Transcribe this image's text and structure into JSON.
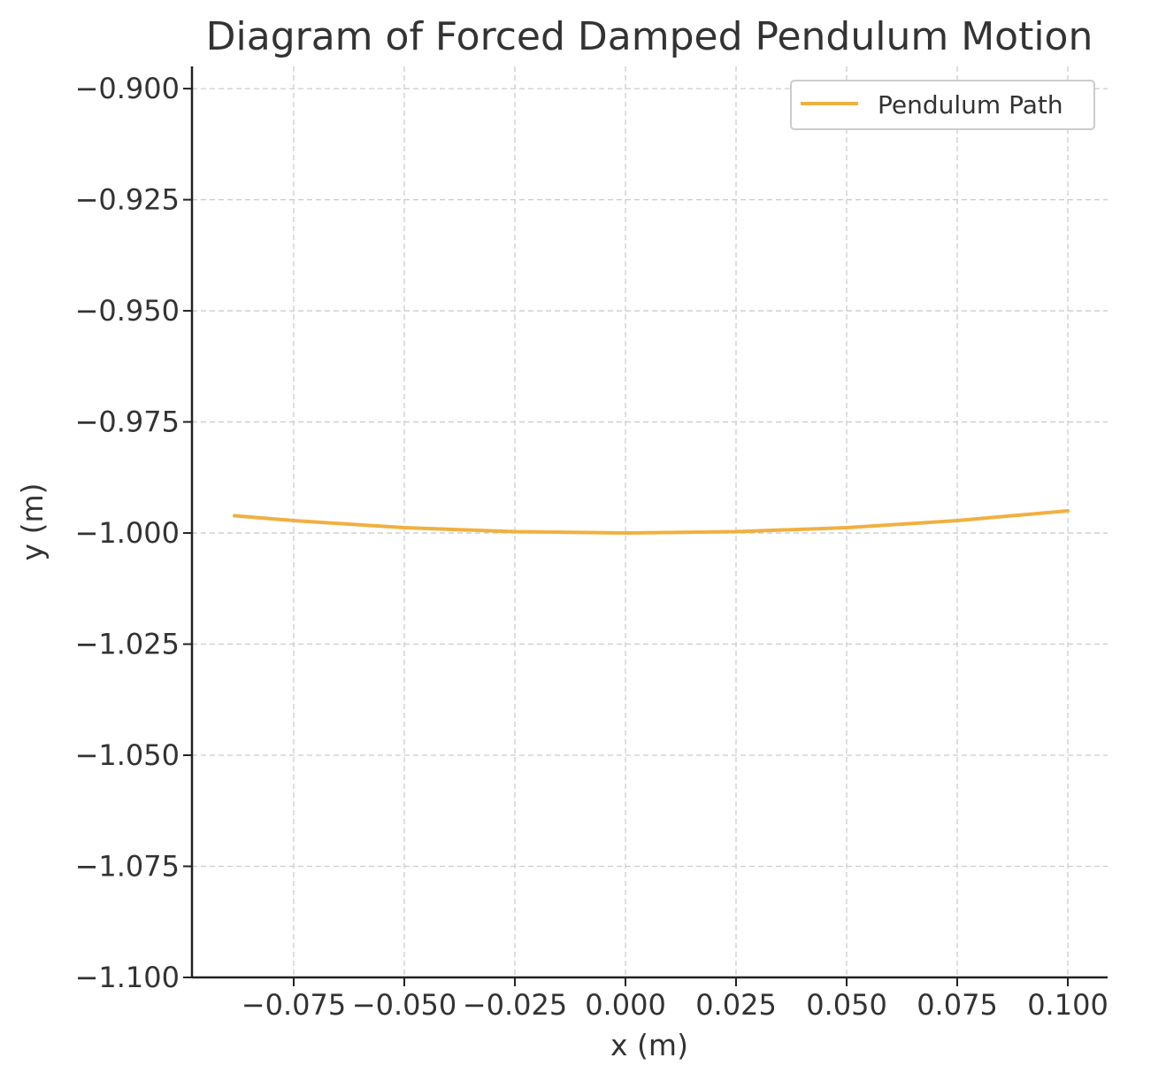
{
  "chart_data": {
    "type": "line",
    "title": "Diagram of Forced Damped Pendulum Motion",
    "xlabel": "x (m)",
    "ylabel": "y (m)",
    "xlim": [
      -0.098,
      0.109
    ],
    "ylim": [
      -1.1,
      -0.895
    ],
    "xticks": [
      -0.075,
      -0.05,
      -0.025,
      0.0,
      0.025,
      0.05,
      0.075,
      0.1
    ],
    "xtick_labels": [
      "−0.075",
      "−0.050",
      "−0.025",
      "0.000",
      "0.025",
      "0.050",
      "0.075",
      "0.100"
    ],
    "yticks": [
      -0.9,
      -0.925,
      -0.95,
      -0.975,
      -1.0,
      -1.025,
      -1.05,
      -1.075,
      -1.1
    ],
    "ytick_labels": [
      "−0.900",
      "−0.925",
      "−0.950",
      "−0.975",
      "−1.000",
      "−1.025",
      "−1.050",
      "−1.075",
      "−1.100"
    ],
    "grid": true,
    "legend_position": "top-right",
    "series": [
      {
        "name": "Pendulum Path",
        "color": "#f0b040",
        "x": [
          -0.0884,
          -0.075,
          -0.05,
          -0.025,
          0.0,
          0.025,
          0.05,
          0.075,
          0.1
        ],
        "y": [
          -0.9961,
          -0.9972,
          -0.9988,
          -0.9997,
          -1.0,
          -0.9997,
          -0.9988,
          -0.9972,
          -0.995
        ]
      }
    ]
  }
}
